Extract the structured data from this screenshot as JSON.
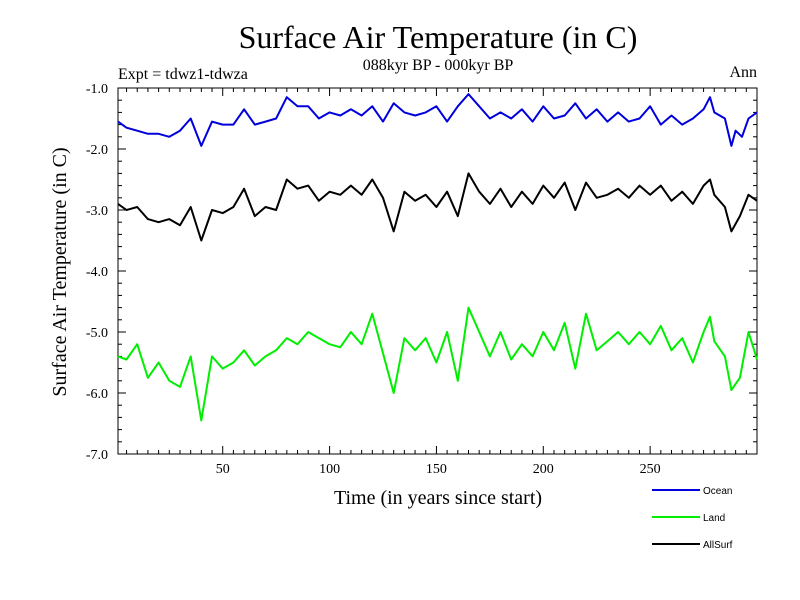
{
  "chart_data": {
    "type": "line",
    "title": "Surface Air Temperature (in C)",
    "subtitle": "088kyr BP - 000kyr BP",
    "experiment_label": "Expt = tdwz1-tdwza",
    "season_label": "Ann",
    "xlabel": "Time (in years since start)",
    "ylabel": "Surface Air Temperature (in C)",
    "xlim": [
      1,
      300
    ],
    "ylim": [
      -7.0,
      -1.0
    ],
    "x_ticks": [
      50,
      100,
      150,
      200,
      250
    ],
    "x_tick_labels": [
      "50",
      "100",
      "150",
      "200",
      "250"
    ],
    "y_ticks": [
      -1.0,
      -2.0,
      -3.0,
      -4.0,
      -5.0,
      -6.0,
      -7.0
    ],
    "y_tick_labels": [
      "-1.0",
      "-2.0",
      "-3.0",
      "-4.0",
      "-5.0",
      "-6.0",
      "-7.0"
    ],
    "grid": false,
    "legend_position": "bottom-right",
    "series": [
      {
        "name": "Ocean",
        "color": "#0000dd",
        "points": [
          [
            1,
            -1.55
          ],
          [
            5,
            -1.65
          ],
          [
            10,
            -1.7
          ],
          [
            15,
            -1.75
          ],
          [
            20,
            -1.75
          ],
          [
            25,
            -1.8
          ],
          [
            30,
            -1.7
          ],
          [
            35,
            -1.5
          ],
          [
            40,
            -1.95
          ],
          [
            45,
            -1.55
          ],
          [
            50,
            -1.6
          ],
          [
            55,
            -1.6
          ],
          [
            60,
            -1.35
          ],
          [
            65,
            -1.6
          ],
          [
            70,
            -1.55
          ],
          [
            75,
            -1.5
          ],
          [
            80,
            -1.15
          ],
          [
            85,
            -1.3
          ],
          [
            90,
            -1.3
          ],
          [
            95,
            -1.5
          ],
          [
            100,
            -1.4
          ],
          [
            105,
            -1.45
          ],
          [
            110,
            -1.35
          ],
          [
            115,
            -1.45
          ],
          [
            120,
            -1.3
          ],
          [
            125,
            -1.55
          ],
          [
            130,
            -1.25
          ],
          [
            135,
            -1.4
          ],
          [
            140,
            -1.45
          ],
          [
            145,
            -1.4
          ],
          [
            150,
            -1.3
          ],
          [
            155,
            -1.55
          ],
          [
            160,
            -1.3
          ],
          [
            165,
            -1.1
          ],
          [
            170,
            -1.3
          ],
          [
            175,
            -1.5
          ],
          [
            180,
            -1.4
          ],
          [
            185,
            -1.5
          ],
          [
            190,
            -1.35
          ],
          [
            195,
            -1.55
          ],
          [
            200,
            -1.3
          ],
          [
            205,
            -1.5
          ],
          [
            210,
            -1.45
          ],
          [
            215,
            -1.25
          ],
          [
            220,
            -1.5
          ],
          [
            225,
            -1.35
          ],
          [
            230,
            -1.55
          ],
          [
            235,
            -1.4
          ],
          [
            240,
            -1.55
          ],
          [
            245,
            -1.5
          ],
          [
            250,
            -1.3
          ],
          [
            255,
            -1.6
          ],
          [
            260,
            -1.45
          ],
          [
            265,
            -1.6
          ],
          [
            270,
            -1.5
          ],
          [
            275,
            -1.35
          ],
          [
            278,
            -1.15
          ],
          [
            280,
            -1.4
          ],
          [
            285,
            -1.5
          ],
          [
            288,
            -1.95
          ],
          [
            290,
            -1.7
          ],
          [
            293,
            -1.8
          ],
          [
            296,
            -1.5
          ],
          [
            300,
            -1.4
          ]
        ]
      },
      {
        "name": "Land",
        "color": "#00ee00",
        "points": [
          [
            1,
            -5.4
          ],
          [
            5,
            -5.45
          ],
          [
            10,
            -5.2
          ],
          [
            15,
            -5.75
          ],
          [
            20,
            -5.5
          ],
          [
            25,
            -5.8
          ],
          [
            30,
            -5.9
          ],
          [
            35,
            -5.4
          ],
          [
            40,
            -6.45
          ],
          [
            45,
            -5.4
          ],
          [
            50,
            -5.6
          ],
          [
            55,
            -5.5
          ],
          [
            60,
            -5.3
          ],
          [
            65,
            -5.55
          ],
          [
            70,
            -5.4
          ],
          [
            75,
            -5.3
          ],
          [
            80,
            -5.1
          ],
          [
            85,
            -5.2
          ],
          [
            90,
            -5.0
          ],
          [
            95,
            -5.1
          ],
          [
            100,
            -5.2
          ],
          [
            105,
            -5.25
          ],
          [
            110,
            -5.0
          ],
          [
            115,
            -5.2
          ],
          [
            120,
            -4.7
          ],
          [
            125,
            -5.35
          ],
          [
            130,
            -6.0
          ],
          [
            135,
            -5.1
          ],
          [
            140,
            -5.3
          ],
          [
            145,
            -5.1
          ],
          [
            150,
            -5.5
          ],
          [
            155,
            -5.0
          ],
          [
            160,
            -5.8
          ],
          [
            165,
            -4.6
          ],
          [
            170,
            -5.0
          ],
          [
            175,
            -5.4
          ],
          [
            180,
            -5.0
          ],
          [
            185,
            -5.45
          ],
          [
            190,
            -5.2
          ],
          [
            195,
            -5.4
          ],
          [
            200,
            -5.0
          ],
          [
            205,
            -5.3
          ],
          [
            210,
            -4.85
          ],
          [
            215,
            -5.6
          ],
          [
            220,
            -4.7
          ],
          [
            225,
            -5.3
          ],
          [
            230,
            -5.15
          ],
          [
            235,
            -5.0
          ],
          [
            240,
            -5.2
          ],
          [
            245,
            -5.0
          ],
          [
            250,
            -5.2
          ],
          [
            255,
            -4.9
          ],
          [
            260,
            -5.3
          ],
          [
            265,
            -5.1
          ],
          [
            270,
            -5.5
          ],
          [
            275,
            -5.0
          ],
          [
            278,
            -4.75
          ],
          [
            280,
            -5.15
          ],
          [
            285,
            -5.4
          ],
          [
            288,
            -5.95
          ],
          [
            292,
            -5.75
          ],
          [
            296,
            -5.0
          ],
          [
            300,
            -5.45
          ]
        ]
      },
      {
        "name": "AllSurf",
        "color": "#000000",
        "points": [
          [
            1,
            -2.9
          ],
          [
            5,
            -3.0
          ],
          [
            10,
            -2.95
          ],
          [
            15,
            -3.15
          ],
          [
            20,
            -3.2
          ],
          [
            25,
            -3.15
          ],
          [
            30,
            -3.25
          ],
          [
            35,
            -2.95
          ],
          [
            40,
            -3.5
          ],
          [
            45,
            -3.0
          ],
          [
            50,
            -3.05
          ],
          [
            55,
            -2.95
          ],
          [
            60,
            -2.65
          ],
          [
            65,
            -3.1
          ],
          [
            70,
            -2.95
          ],
          [
            75,
            -3.0
          ],
          [
            80,
            -2.5
          ],
          [
            85,
            -2.65
          ],
          [
            90,
            -2.6
          ],
          [
            95,
            -2.85
          ],
          [
            100,
            -2.7
          ],
          [
            105,
            -2.75
          ],
          [
            110,
            -2.6
          ],
          [
            115,
            -2.75
          ],
          [
            120,
            -2.5
          ],
          [
            125,
            -2.8
          ],
          [
            130,
            -3.35
          ],
          [
            135,
            -2.7
          ],
          [
            140,
            -2.85
          ],
          [
            145,
            -2.75
          ],
          [
            150,
            -2.95
          ],
          [
            155,
            -2.7
          ],
          [
            160,
            -3.1
          ],
          [
            165,
            -2.4
          ],
          [
            170,
            -2.7
          ],
          [
            175,
            -2.9
          ],
          [
            180,
            -2.65
          ],
          [
            185,
            -2.95
          ],
          [
            190,
            -2.7
          ],
          [
            195,
            -2.9
          ],
          [
            200,
            -2.6
          ],
          [
            205,
            -2.8
          ],
          [
            210,
            -2.55
          ],
          [
            215,
            -3.0
          ],
          [
            220,
            -2.55
          ],
          [
            225,
            -2.8
          ],
          [
            230,
            -2.75
          ],
          [
            235,
            -2.65
          ],
          [
            240,
            -2.8
          ],
          [
            245,
            -2.6
          ],
          [
            250,
            -2.75
          ],
          [
            255,
            -2.6
          ],
          [
            260,
            -2.85
          ],
          [
            265,
            -2.7
          ],
          [
            270,
            -2.9
          ],
          [
            275,
            -2.6
          ],
          [
            278,
            -2.5
          ],
          [
            280,
            -2.75
          ],
          [
            285,
            -2.95
          ],
          [
            288,
            -3.35
          ],
          [
            292,
            -3.1
          ],
          [
            296,
            -2.75
          ],
          [
            300,
            -2.85
          ]
        ]
      }
    ]
  }
}
